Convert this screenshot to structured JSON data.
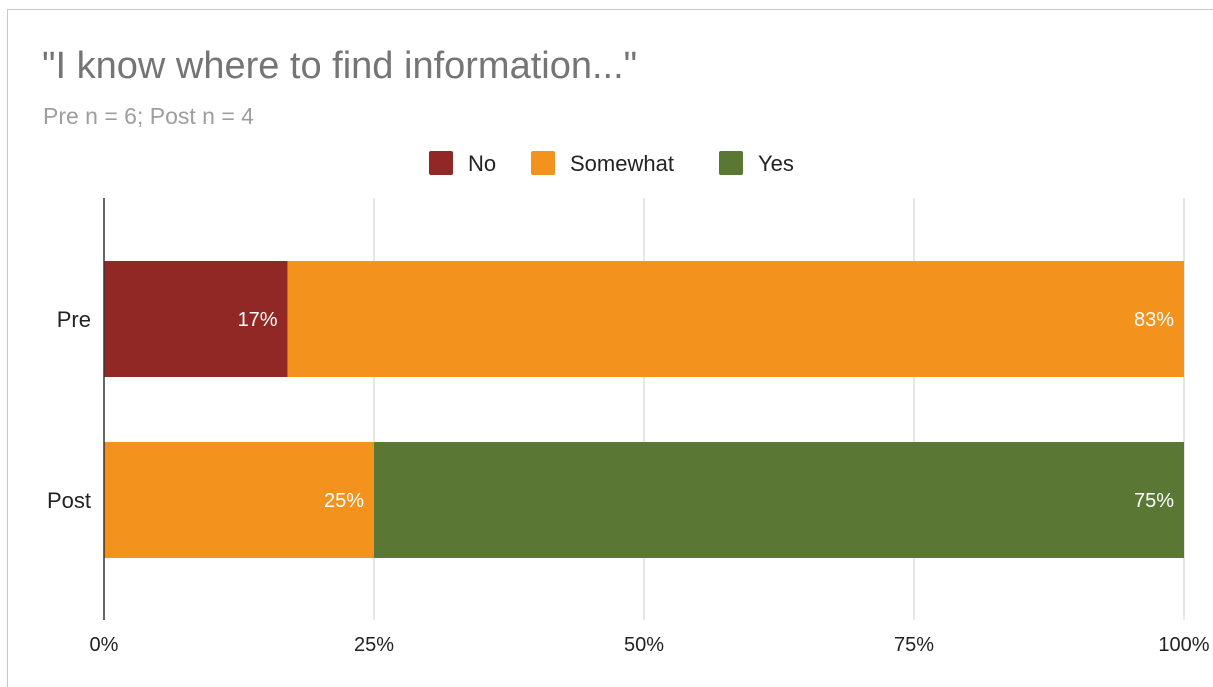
{
  "chart_data": {
    "type": "bar",
    "orientation": "horizontal",
    "stacked": "percent",
    "title": "\"I know where to find information...\"",
    "subtitle": "Pre n = 6; Post n = 4",
    "categories": [
      "Pre",
      "Post"
    ],
    "series": [
      {
        "name": "No",
        "color": "#922826",
        "values": [
          17,
          0
        ],
        "labels": [
          "17%",
          ""
        ]
      },
      {
        "name": "Somewhat",
        "color": "#f4921e",
        "values": [
          83,
          25
        ],
        "labels": [
          "83%",
          "25%"
        ]
      },
      {
        "name": "Yes",
        "color": "#5a7834",
        "values": [
          0,
          75
        ],
        "labels": [
          "",
          "75%"
        ]
      }
    ],
    "x_ticks": [
      "0%",
      "25%",
      "50%",
      "75%",
      "100%"
    ],
    "xlim": [
      0,
      100
    ],
    "grid": true,
    "legend_position": "top-center"
  }
}
